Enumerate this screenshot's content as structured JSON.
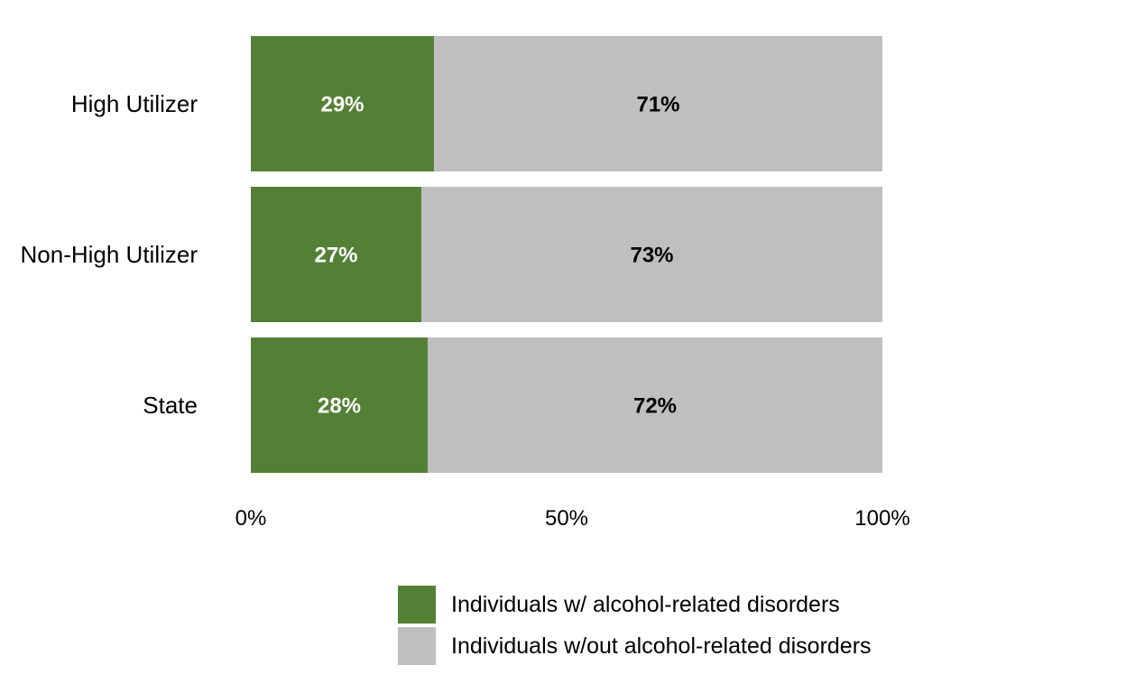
{
  "colors": {
    "with": "#548036",
    "without": "#bfbfbf",
    "with_label": "#ffffff",
    "without_label": "#000000"
  },
  "chart_data": {
    "type": "bar",
    "orientation": "horizontal",
    "stacked": true,
    "categories": [
      "High Utilizer",
      "Non-High Utilizer",
      "State"
    ],
    "series": [
      {
        "name": "Individuals w/ alcohol-related disorders",
        "values": [
          29,
          27,
          28
        ],
        "labels": [
          "29%",
          "27%",
          "28%"
        ]
      },
      {
        "name": "Individuals w/out alcohol-related disorders",
        "values": [
          71,
          73,
          72
        ],
        "labels": [
          "71%",
          "73%",
          "72%"
        ]
      }
    ],
    "xlim": [
      0,
      100
    ],
    "x_ticks": [
      0,
      50,
      100
    ],
    "x_tick_labels": [
      "0%",
      "50%",
      "100%"
    ],
    "grid": false,
    "legend_position": "bottom"
  }
}
